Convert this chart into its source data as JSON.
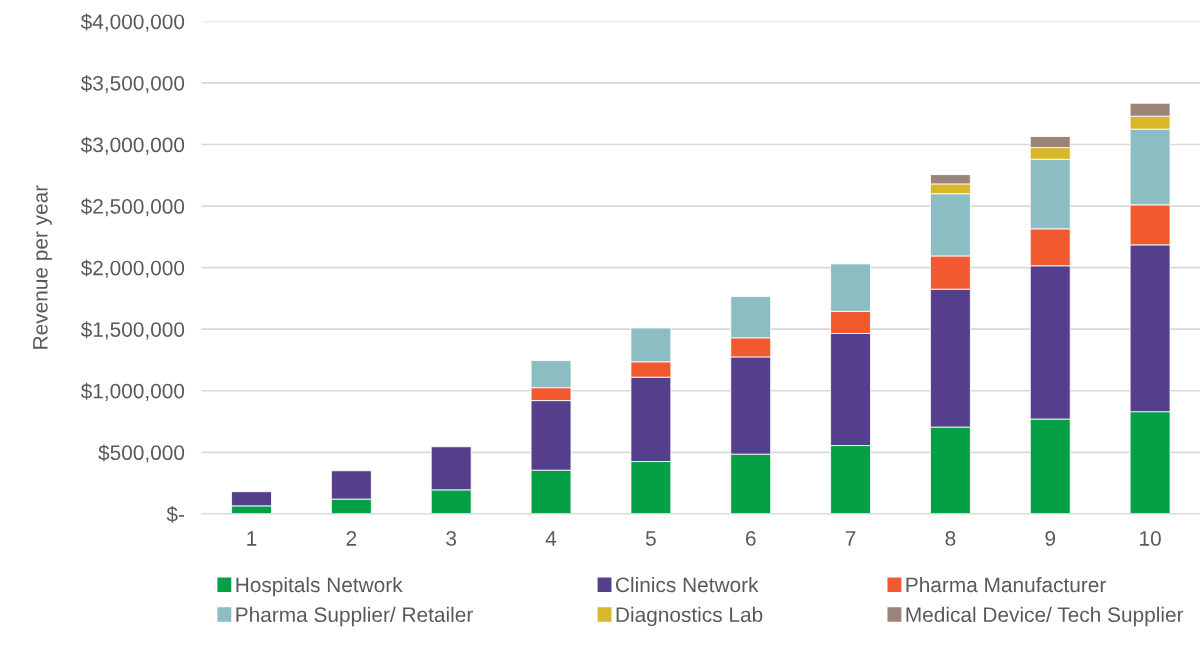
{
  "chart_data": {
    "type": "bar",
    "stacked": true,
    "ylabel": "Revenue per year",
    "categories": [
      "1",
      "2",
      "3",
      "4",
      "5",
      "6",
      "7",
      "8",
      "9",
      "10"
    ],
    "series": [
      {
        "name": "Hospitals Network",
        "color": "#05a046",
        "values": [
          65000,
          120000,
          195000,
          355000,
          425000,
          485000,
          555000,
          705000,
          770000,
          830000
        ]
      },
      {
        "name": "Clinics Network",
        "color": "#553e8c",
        "values": [
          115000,
          230000,
          350000,
          565000,
          685000,
          790000,
          910000,
          1120000,
          1245000,
          1355000
        ]
      },
      {
        "name": "Pharma Manufacturer",
        "color": "#f15a2f",
        "values": [
          null,
          null,
          null,
          105000,
          125000,
          155000,
          180000,
          270000,
          300000,
          325000
        ]
      },
      {
        "name": "Pharma Supplier/ Retailer",
        "color": "#8cbdc3",
        "values": [
          null,
          null,
          null,
          220000,
          275000,
          335000,
          385000,
          505000,
          565000,
          615000
        ]
      },
      {
        "name": "Diagnostics Lab",
        "color": "#d8b829",
        "values": [
          null,
          null,
          null,
          null,
          null,
          null,
          null,
          80000,
          95000,
          105000
        ]
      },
      {
        "name": "Medical Device/ Tech Supplier",
        "color": "#9b8579",
        "values": [
          null,
          null,
          null,
          null,
          null,
          null,
          null,
          75000,
          90000,
          105000
        ]
      }
    ],
    "ylim": [
      0,
      4000000
    ],
    "yticks": [
      {
        "value": 0,
        "label": "$-"
      },
      {
        "value": 500000,
        "label": "$500,000"
      },
      {
        "value": 1000000,
        "label": "$1,000,000"
      },
      {
        "value": 1500000,
        "label": "$1,500,000"
      },
      {
        "value": 2000000,
        "label": "$2,000,000"
      },
      {
        "value": 2500000,
        "label": "$2,500,000"
      },
      {
        "value": 3000000,
        "label": "$3,000,000"
      },
      {
        "value": 3500000,
        "label": "$3,500,000"
      },
      {
        "value": 4000000,
        "label": "$4,000,000"
      }
    ],
    "grid": "y",
    "legend": "bottom"
  }
}
